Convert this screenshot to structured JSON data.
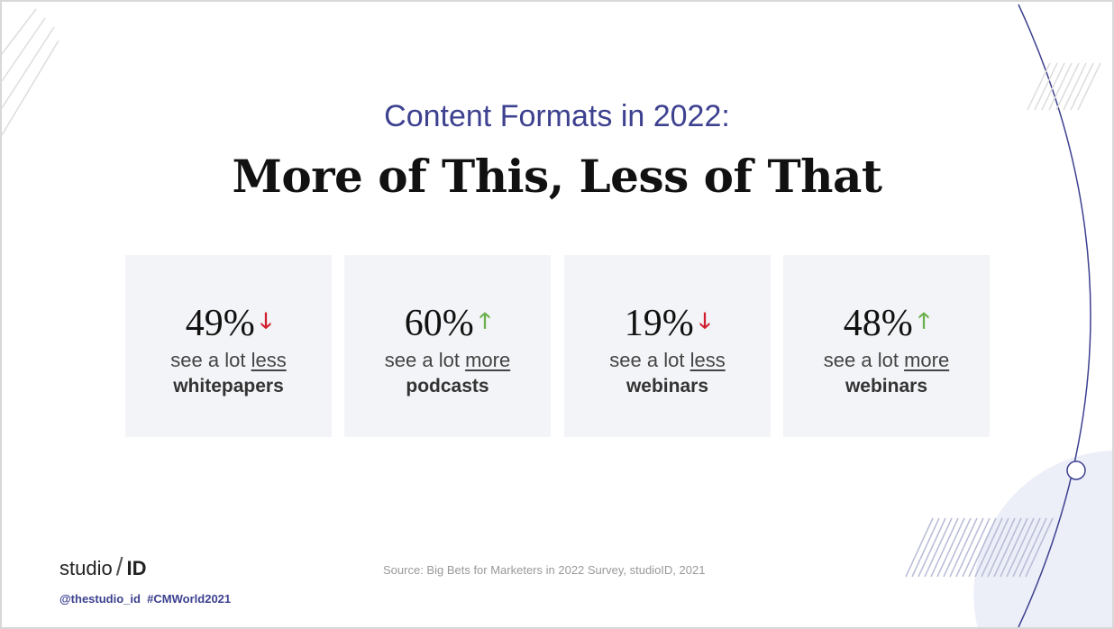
{
  "subtitle": "Content Formats in 2022:",
  "title": "More of This, Less of That",
  "stats": [
    {
      "value": "49%",
      "direction": "down",
      "prefix": "see a lot ",
      "qualifier": "less",
      "format": "whitepapers"
    },
    {
      "value": "60%",
      "direction": "up",
      "prefix": "see a lot ",
      "qualifier": "more",
      "format": "podcasts"
    },
    {
      "value": "19%",
      "direction": "down",
      "prefix": "see a lot ",
      "qualifier": "less",
      "format": "webinars"
    },
    {
      "value": "48%",
      "direction": "up",
      "prefix": "see a lot ",
      "qualifier": "more",
      "format": "webinars"
    }
  ],
  "footer": {
    "logo_left": "studio",
    "logo_sep": "/",
    "logo_right": "ID",
    "social": "@thestudio_id  #CMWorld2021",
    "source": "Source: Big Bets for Marketers in 2022 Survey, studioID, 2021"
  },
  "colors": {
    "accent": "#3d418f",
    "down": "#d11e2e",
    "up": "#6ab04c"
  }
}
